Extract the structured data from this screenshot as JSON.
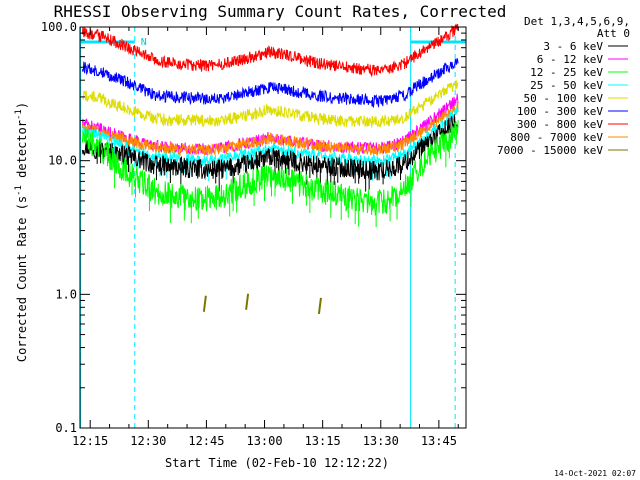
{
  "chart_data": {
    "type": "line",
    "title": "RHESSI Observing Summary Count Rates, Corrected",
    "xlabel": "Start Time (02-Feb-10 12:12:22)",
    "ylabel_main": "Corrected Count Rate (s",
    "ylabel_sup1": "-1",
    "ylabel_mid": " detector",
    "ylabel_sup2": "-1",
    "ylabel_end": ")",
    "x_ticks": [
      "12:15",
      "12:30",
      "12:45",
      "13:00",
      "13:15",
      "13:30",
      "13:45"
    ],
    "x_tick_minutes": [
      735,
      750,
      765,
      780,
      795,
      810,
      825
    ],
    "xlim_minutes": [
      732.37,
      832
    ],
    "y_scale": "log",
    "y_ticks": [
      "100.0",
      "10.0",
      "1.0",
      "0.1"
    ],
    "y_tick_values": [
      100,
      10,
      1,
      0.1
    ],
    "ylim": [
      0.1,
      100
    ],
    "legend_header_1": "Det 1,3,4,5,6,9,",
    "legend_header_2": "Att 0",
    "legend_placement": "right",
    "footer_date": "14-Oct-2021 02:07",
    "night_marker_label": "N",
    "series": [
      {
        "name": "3 - 6 keV",
        "color": "#000000",
        "x": [
          733,
          738,
          745,
          752,
          760,
          766,
          770,
          776,
          781,
          786,
          792,
          798,
          805,
          809,
          812,
          816,
          820,
          824,
          828,
          830
        ],
        "y": [
          13,
          12,
          10.8,
          9.2,
          8.8,
          8.5,
          8.7,
          9.5,
          10.6,
          10.1,
          9.3,
          9.0,
          8.6,
          8.4,
          8.6,
          9.5,
          12,
          15,
          18,
          20
        ]
      },
      {
        "name": "6 - 12 keV",
        "color": "#ff00ff",
        "x": [
          733,
          738,
          745,
          752,
          760,
          766,
          770,
          776,
          781,
          786,
          792,
          798,
          805,
          809,
          812,
          816,
          820,
          824,
          828,
          830
        ],
        "y": [
          19,
          17,
          14.5,
          12.8,
          12.4,
          12.2,
          12.6,
          13.6,
          14.8,
          14.2,
          13.2,
          12.8,
          12.5,
          12.4,
          12.8,
          14,
          17,
          21,
          26,
          30
        ]
      },
      {
        "name": "12 - 25 keV",
        "color": "#00ff00",
        "x": [
          733,
          738,
          745,
          752,
          760,
          766,
          770,
          776,
          781,
          786,
          792,
          798,
          805,
          809,
          812,
          816,
          820,
          824,
          828,
          830
        ],
        "y": [
          15,
          12,
          8,
          5.8,
          5.3,
          5.2,
          5.6,
          6.8,
          7.9,
          7.3,
          6.2,
          5.6,
          5.0,
          4.8,
          5.0,
          6.2,
          9,
          12,
          15,
          17
        ]
      },
      {
        "name": "25 - 50 keV",
        "color": "#00ffff",
        "x": [
          733,
          738,
          745,
          752,
          760,
          766,
          770,
          776,
          781,
          786,
          792,
          798,
          805,
          809,
          812,
          816,
          820,
          824,
          828,
          830
        ],
        "y": [
          17,
          15,
          12.5,
          10.8,
          10.2,
          10,
          10.3,
          11.3,
          12.4,
          11.8,
          10.9,
          10.5,
          10.1,
          10,
          10.3,
          11.2,
          13.5,
          17,
          21,
          23
        ]
      },
      {
        "name": "50 - 100 keV",
        "color": "#dddd00",
        "x": [
          733,
          738,
          745,
          752,
          760,
          766,
          770,
          776,
          781,
          786,
          792,
          798,
          805,
          809,
          812,
          816,
          820,
          824,
          828,
          830
        ],
        "y": [
          31,
          29,
          24,
          20.5,
          20,
          19.8,
          20.3,
          22,
          24,
          23,
          21,
          20,
          19.6,
          19.5,
          19.8,
          21,
          25,
          30,
          35,
          37
        ]
      },
      {
        "name": "100 - 300 keV",
        "color": "#0000ff",
        "x": [
          733,
          738,
          745,
          752,
          760,
          766,
          770,
          776,
          781,
          786,
          792,
          798,
          805,
          809,
          812,
          816,
          820,
          824,
          828,
          830
        ],
        "y": [
          50,
          46,
          38,
          30.5,
          29.5,
          29,
          29.8,
          32.5,
          35.5,
          34,
          31,
          29.5,
          28.5,
          28,
          28.5,
          31,
          37,
          44,
          51,
          54
        ]
      },
      {
        "name": "300 - 800 keV",
        "color": "#ff0000",
        "x": [
          733,
          738,
          745,
          752,
          760,
          766,
          770,
          776,
          781,
          786,
          792,
          798,
          805,
          809,
          812,
          816,
          820,
          824,
          828,
          830
        ],
        "y": [
          91,
          85,
          70,
          56,
          52,
          51,
          53,
          59,
          65,
          62,
          55,
          51,
          48.5,
          47.5,
          48.5,
          53,
          64,
          76,
          90,
          98
        ]
      },
      {
        "name": "800 - 7000 keV",
        "color": "#ff8800",
        "x": [
          733,
          738,
          745,
          752,
          760,
          766,
          770,
          776,
          781,
          786,
          792,
          798,
          805,
          809,
          812,
          816,
          820,
          824,
          828,
          830
        ],
        "y": [
          18,
          16,
          14,
          12.4,
          12.2,
          12,
          12.4,
          13.4,
          14.6,
          14,
          13,
          12.6,
          12.2,
          12.1,
          12.4,
          13.3,
          16,
          19.5,
          23,
          25
        ]
      },
      {
        "name": "7000 - 15000 keV",
        "color": "#777700",
        "x": [
          764.6,
          775.5,
          794.3
        ],
        "y": [
          0.85,
          0.88,
          0.82
        ]
      }
    ],
    "night_intervals_minutes": [
      [
        732.5,
        746.5
      ],
      [
        817.7,
        832
      ]
    ],
    "dashed_boundaries_minutes": [
      746.5,
      829.2
    ]
  }
}
